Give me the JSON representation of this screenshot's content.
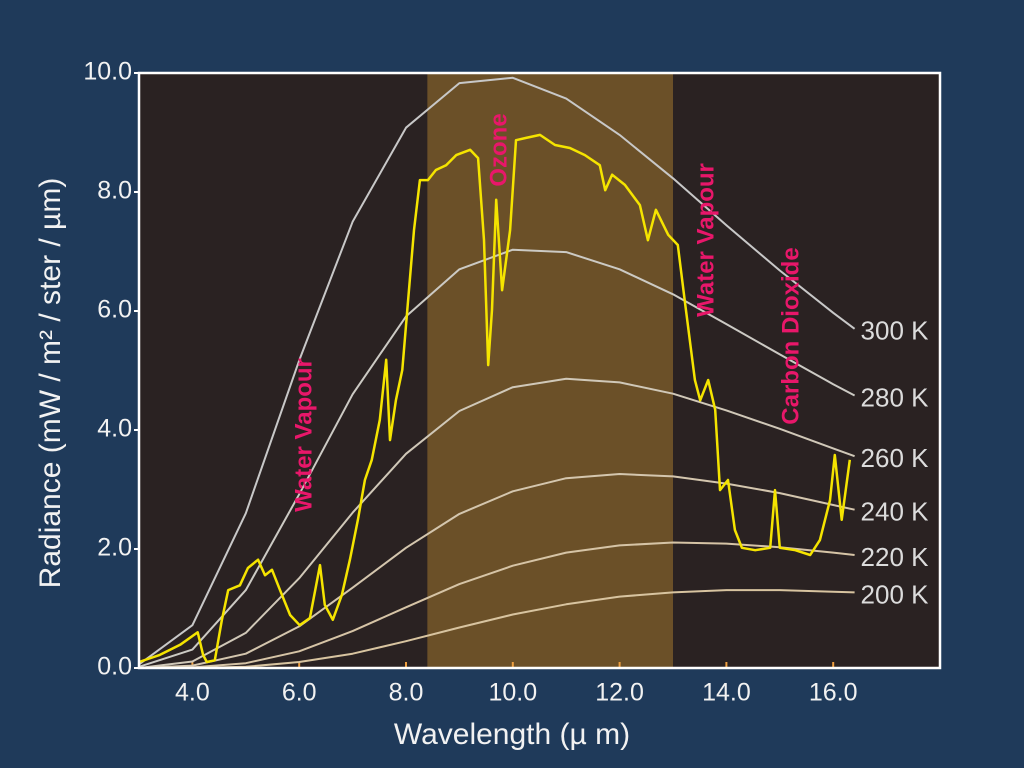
{
  "chart_data": {
    "type": "line",
    "xlabel": "Wavelength (µ m)",
    "ylabel": "Radiance (mW / m² / ster / µm)",
    "xlim": [
      3,
      18
    ],
    "ylim": [
      0,
      10
    ],
    "xticks": [
      {
        "value": 4,
        "label": "4.0"
      },
      {
        "value": 6,
        "label": "6.0"
      },
      {
        "value": 8,
        "label": "8.0"
      },
      {
        "value": 10,
        "label": "10.0"
      },
      {
        "value": 12,
        "label": "12.0"
      },
      {
        "value": 14,
        "label": "14.0"
      },
      {
        "value": 16,
        "label": "16.0"
      }
    ],
    "yticks": [
      {
        "value": 0,
        "label": "0.0"
      },
      {
        "value": 2,
        "label": "2.0"
      },
      {
        "value": 4,
        "label": "4.0"
      },
      {
        "value": 6,
        "label": "6.0"
      },
      {
        "value": 8,
        "label": "8.0"
      },
      {
        "value": 10,
        "label": "10.0"
      }
    ],
    "window": {
      "range": [
        8.4,
        13.0
      ],
      "color": "#6b5028"
    },
    "series": [
      {
        "name": "300 K",
        "color": "#c8c8c8",
        "x": [
          3,
          4,
          5,
          6,
          7,
          8,
          9,
          10,
          11,
          12,
          13,
          14,
          15,
          16,
          16.4
        ],
        "values": [
          0.06,
          0.72,
          2.6,
          5.17,
          7.5,
          9.08,
          9.83,
          9.92,
          9.57,
          8.96,
          8.23,
          7.44,
          6.68,
          5.97,
          5.7
        ]
      },
      {
        "name": "280 K",
        "color": "#cccac4",
        "x": [
          3,
          4,
          5,
          6,
          7,
          8,
          9,
          10,
          11,
          12,
          13,
          14,
          15,
          16,
          16.4
        ],
        "values": [
          0.02,
          0.31,
          1.31,
          2.92,
          4.6,
          5.91,
          6.7,
          7.03,
          6.99,
          6.7,
          6.28,
          5.78,
          5.27,
          4.77,
          4.58
        ]
      },
      {
        "name": "260 K",
        "color": "#d0c8b8",
        "x": [
          3,
          4,
          5,
          6,
          7,
          8,
          9,
          10,
          11,
          12,
          13,
          14,
          15,
          16,
          16.4
        ],
        "values": [
          0.0,
          0.11,
          0.59,
          1.51,
          2.61,
          3.6,
          4.32,
          4.72,
          4.86,
          4.8,
          4.61,
          4.33,
          4.02,
          3.69,
          3.56
        ]
      },
      {
        "name": "240 K",
        "color": "#d4c6ae",
        "x": [
          3,
          4,
          5,
          6,
          7,
          8,
          9,
          10,
          11,
          12,
          13,
          14,
          15,
          16,
          16.4
        ],
        "values": [
          0.0,
          0.04,
          0.24,
          0.7,
          1.35,
          2.02,
          2.59,
          2.97,
          3.19,
          3.26,
          3.22,
          3.1,
          2.94,
          2.74,
          2.66
        ]
      },
      {
        "name": "220 K",
        "color": "#d6c4a6",
        "x": [
          3,
          4,
          5,
          6,
          7,
          8,
          9,
          10,
          11,
          12,
          13,
          14,
          15,
          16,
          16.4
        ],
        "values": [
          0.0,
          0.01,
          0.08,
          0.28,
          0.62,
          1.02,
          1.41,
          1.72,
          1.94,
          2.06,
          2.11,
          2.09,
          2.03,
          1.94,
          1.9
        ]
      },
      {
        "name": "200 K",
        "color": "#d8c4a0",
        "x": [
          3,
          4,
          5,
          6,
          7,
          8,
          9,
          10,
          11,
          12,
          13,
          14,
          15,
          16,
          16.4
        ],
        "values": [
          0.0,
          0.0,
          0.02,
          0.1,
          0.24,
          0.45,
          0.68,
          0.9,
          1.07,
          1.2,
          1.27,
          1.31,
          1.31,
          1.28,
          1.27
        ]
      },
      {
        "color": "#f5e400",
        "x": [
          3.0,
          3.39,
          3.77,
          4.1,
          4.2,
          4.27,
          4.42,
          4.55,
          4.67,
          4.89,
          5.04,
          5.23,
          5.36,
          5.49,
          5.64,
          5.83,
          6.01,
          6.2,
          6.39,
          6.48,
          6.63,
          6.8,
          6.95,
          7.1,
          7.23,
          7.36,
          7.51,
          7.63,
          7.7,
          7.81,
          7.93,
          8.04,
          8.15,
          8.26,
          8.41,
          8.56,
          8.75,
          8.94,
          9.2,
          9.35,
          9.46,
          9.54,
          9.61,
          9.69,
          9.8,
          9.95,
          10.06,
          10.25,
          10.51,
          10.79,
          11.07,
          11.35,
          11.63,
          11.73,
          11.86,
          12.1,
          12.38,
          12.53,
          12.68,
          12.91,
          13.09,
          13.22,
          13.41,
          13.51,
          13.66,
          13.79,
          13.88,
          14.03,
          14.16,
          14.29,
          14.54,
          14.82,
          14.91,
          15.0,
          15.29,
          15.57,
          15.75,
          15.94,
          16.03,
          16.16,
          16.31
        ],
        "values": [
          0.1,
          0.22,
          0.39,
          0.6,
          0.22,
          0.1,
          0.13,
          0.8,
          1.31,
          1.39,
          1.68,
          1.82,
          1.56,
          1.65,
          1.31,
          0.89,
          0.72,
          0.84,
          1.73,
          1.06,
          0.81,
          1.23,
          1.82,
          2.49,
          3.16,
          3.5,
          4.17,
          5.18,
          3.83,
          4.5,
          5.01,
          6.18,
          7.36,
          8.2,
          8.2,
          8.37,
          8.45,
          8.62,
          8.71,
          8.57,
          7.19,
          5.09,
          6.02,
          7.87,
          6.35,
          7.36,
          8.87,
          8.91,
          8.96,
          8.79,
          8.74,
          8.62,
          8.45,
          8.03,
          8.29,
          8.12,
          7.78,
          7.19,
          7.7,
          7.28,
          7.11,
          6.18,
          4.84,
          4.5,
          4.84,
          4.34,
          2.99,
          3.16,
          2.32,
          2.02,
          1.98,
          2.02,
          2.99,
          2.02,
          1.98,
          1.9,
          2.15,
          2.82,
          3.58,
          2.49,
          3.5
        ]
      }
    ],
    "annotations": [
      "Water Vapour",
      "Ozone",
      "Water Vapour",
      "Carbon Dioxide"
    ],
    "annotation_color": "#e8176a"
  }
}
